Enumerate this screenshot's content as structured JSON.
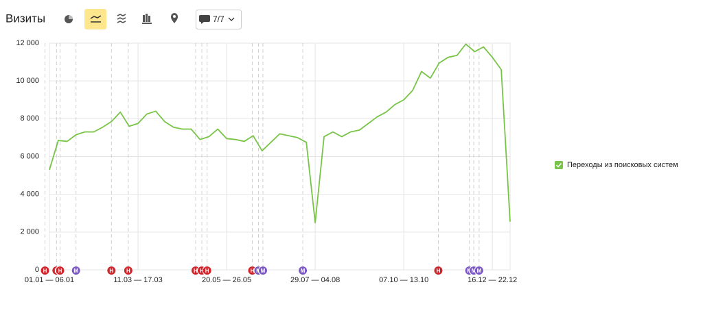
{
  "header": {
    "title": "Визиты",
    "comments_button": "7/7"
  },
  "chart_data": {
    "type": "line",
    "categories": [
      "01.01 — 06.01",
      null,
      null,
      null,
      null,
      null,
      null,
      null,
      null,
      null,
      "11.03 — 17.03",
      null,
      null,
      null,
      null,
      null,
      null,
      null,
      null,
      null,
      "20.05 — 26.05",
      null,
      null,
      null,
      null,
      null,
      null,
      null,
      null,
      null,
      "29.07 — 04.08",
      null,
      null,
      null,
      null,
      null,
      null,
      null,
      null,
      null,
      "07.10 — 13.10",
      null,
      null,
      null,
      null,
      null,
      null,
      null,
      null,
      null,
      "16.12 — 22.12",
      null,
      null
    ],
    "series": [
      {
        "name": "Переходы из поисковых систем",
        "color": "#78c446",
        "values": [
          5300,
          6850,
          6800,
          7150,
          7300,
          7300,
          7550,
          7850,
          8350,
          7600,
          7750,
          8250,
          8400,
          7850,
          7550,
          7450,
          7450,
          6900,
          7050,
          7450,
          6950,
          6900,
          6800,
          7100,
          6300,
          6750,
          7200,
          7100,
          7000,
          6750,
          2500,
          7050,
          7300,
          7050,
          7300,
          7400,
          7750,
          8100,
          8350,
          8750,
          9000,
          9500,
          10500,
          10150,
          10950,
          11250,
          11350,
          11950,
          11550,
          11800,
          11250,
          10600,
          2550
        ]
      }
    ],
    "ylim": [
      0,
      12000
    ],
    "yticks": [
      0,
      {
        "value": 2000,
        "label": "2 000"
      },
      {
        "value": 4000,
        "label": "4 000"
      },
      {
        "value": 6000,
        "label": "6 000"
      },
      {
        "value": 8000,
        "label": "8 000"
      },
      {
        "value": 10000,
        "label": "10 000"
      },
      {
        "value": 12000,
        "label": "12 000"
      }
    ],
    "grid": true,
    "legend": "right",
    "annotations": [
      {
        "label": "Н",
        "x": -0.5,
        "color": "#d0252b"
      },
      {
        "label": "Н",
        "x": 0.8,
        "color": "#d0252b"
      },
      {
        "label": "Н",
        "x": 1.2,
        "color": "#d0252b"
      },
      {
        "label": "М",
        "x": 3.0,
        "color": "#7b57c6"
      },
      {
        "label": "Н",
        "x": 7.0,
        "color": "#d0252b"
      },
      {
        "label": "Н",
        "x": 8.9,
        "color": "#d0252b"
      },
      {
        "label": "Н",
        "x": 16.5,
        "color": "#d0252b"
      },
      {
        "label": "Н",
        "x": 17.2,
        "color": "#d0252b"
      },
      {
        "label": "Н",
        "x": 17.8,
        "color": "#d0252b"
      },
      {
        "label": "Н",
        "x": 22.9,
        "color": "#d0252b"
      },
      {
        "label": "М",
        "x": 23.6,
        "color": "#7b57c6"
      },
      {
        "label": "М",
        "x": 24.1,
        "color": "#7b57c6"
      },
      {
        "label": "М",
        "x": 28.6,
        "color": "#7b57c6"
      },
      {
        "label": "Н",
        "x": 43.9,
        "color": "#d0252b"
      },
      {
        "label": "М",
        "x": 47.4,
        "color": "#7b57c6"
      },
      {
        "label": "М",
        "x": 47.9,
        "color": "#7b57c6"
      },
      {
        "label": "М",
        "x": 48.5,
        "color": "#7b57c6"
      }
    ]
  }
}
